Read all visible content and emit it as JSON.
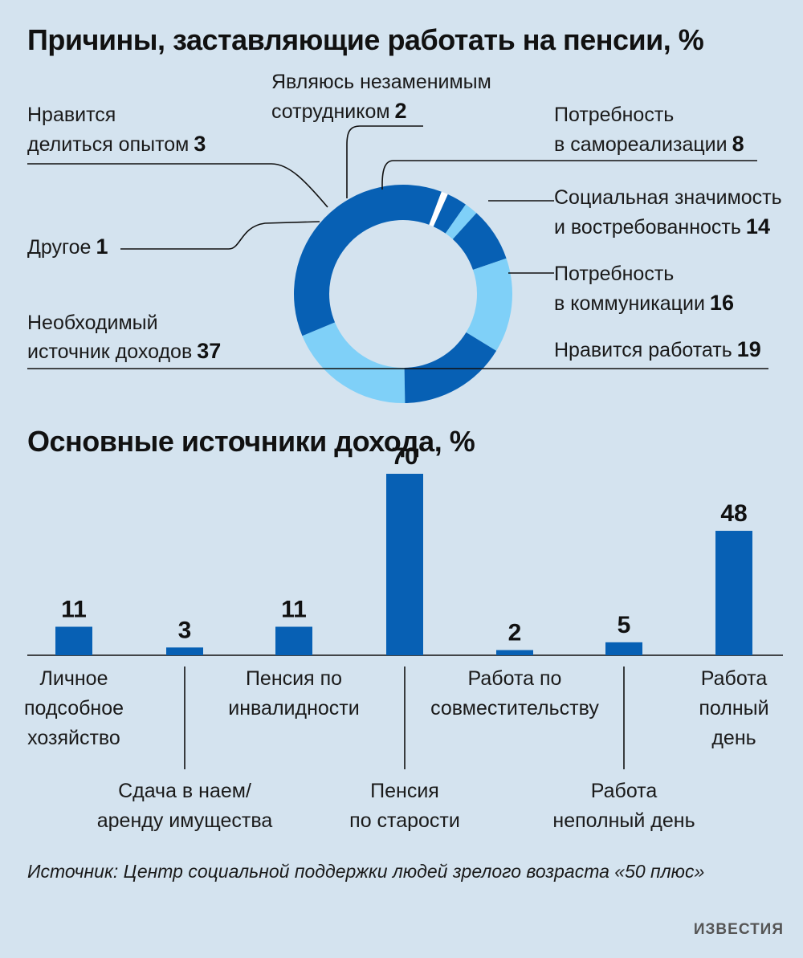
{
  "source": "Источник: Центр социальной поддержки людей зрелого возраста «50 плюс»",
  "logo": "ИЗВЕСТИЯ",
  "colors": {
    "background": "#d4e3ef",
    "dark_blue": "#0760b4",
    "light_blue": "#7fd0f8",
    "other_slice": "#ffffff"
  },
  "chart_data": [
    {
      "type": "pie",
      "title": "Причины, заставляющие работать на пенсии, %",
      "unit": "%",
      "slices": [
        {
          "label": [
            "Нравится работать"
          ],
          "value": 19,
          "color": "#7fd0f8"
        },
        {
          "label": [
            "Необходимый",
            "источник доходов"
          ],
          "value": 37,
          "color": "#0760b4"
        },
        {
          "label": [
            "Другое"
          ],
          "value": 1,
          "color": "#ffffff"
        },
        {
          "label": [
            "Нравится",
            "делиться опытом"
          ],
          "value": 3,
          "color": "#0760b4"
        },
        {
          "label": [
            "Являюсь незаменимым",
            "сотрудником"
          ],
          "value": 2,
          "color": "#7fd0f8"
        },
        {
          "label": [
            "Потребность",
            "в самореализации"
          ],
          "value": 8,
          "color": "#0760b4"
        },
        {
          "label": [
            "Социальная значимость",
            "и востребованность"
          ],
          "value": 14,
          "color": "#7fd0f8"
        },
        {
          "label": [
            "Потребность",
            "в коммуникации"
          ],
          "value": 16,
          "color": "#0760b4"
        }
      ]
    },
    {
      "type": "bar",
      "title": "Основные источники дохода, %",
      "unit": "%",
      "bar_color": "#0760b4",
      "categories": [
        [
          "Личное",
          "подсобное",
          "хозяйство"
        ],
        [
          "Сдача в наем/",
          "аренду имущества"
        ],
        [
          "Пенсия по",
          "инвалидности"
        ],
        [
          "Пенсия",
          "по старости"
        ],
        [
          "Работа по",
          "совместительству"
        ],
        [
          "Работа",
          "неполный день"
        ],
        [
          "Работа",
          "полный",
          "день"
        ]
      ],
      "values": [
        11,
        3,
        11,
        70,
        2,
        5,
        48
      ]
    }
  ]
}
